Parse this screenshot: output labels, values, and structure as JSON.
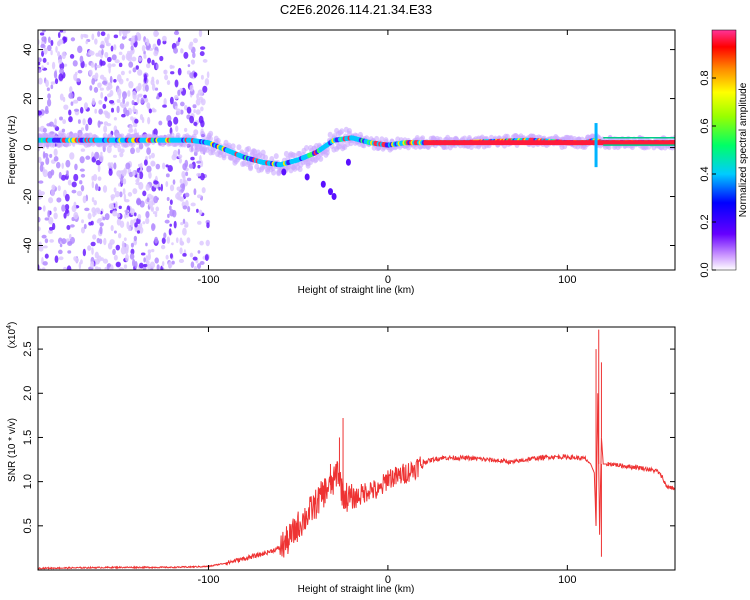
{
  "title": "C2E6.2026.114.21.34.E33",
  "chart_data": [
    {
      "type": "heatmap",
      "name": "spectrogram",
      "xlabel": "Height of straight line (km)",
      "ylabel": "Frequency (Hz)",
      "xlim": [
        -195,
        160
      ],
      "ylim": [
        -50,
        48
      ],
      "x_ticks": [
        -100,
        0,
        100
      ],
      "y_ticks": [
        -40,
        -20,
        0,
        20,
        40
      ],
      "colorbar": {
        "label": "Normalized spectral amplitude",
        "range": [
          0,
          1
        ],
        "ticks": [
          0.0,
          0.2,
          0.4,
          0.6,
          0.8
        ],
        "colors": [
          "#ffffff",
          "#cc99ff",
          "#6600ff",
          "#0000ff",
          "#00ccff",
          "#00ff66",
          "#99ff00",
          "#ffff00",
          "#ff8800",
          "#ff0000",
          "#ff3399"
        ]
      },
      "features": {
        "band_center_hz": [
          [
            -195,
            3
          ],
          [
            -150,
            3
          ],
          [
            -110,
            3
          ],
          [
            -100,
            2
          ],
          [
            -90,
            -1
          ],
          [
            -80,
            -4
          ],
          [
            -70,
            -6
          ],
          [
            -60,
            -7
          ],
          [
            -50,
            -5
          ],
          [
            -40,
            -2
          ],
          [
            -30,
            3
          ],
          [
            -20,
            4
          ],
          [
            -10,
            2
          ],
          [
            0,
            1
          ],
          [
            10,
            2
          ],
          [
            40,
            2
          ],
          [
            80,
            3
          ],
          [
            100,
            2
          ],
          [
            110,
            2
          ],
          [
            115,
            3
          ],
          [
            120,
            2
          ],
          [
            160,
            2
          ]
        ],
        "noise_region_km": [
          -195,
          -100
        ],
        "spike_km": 116
      }
    },
    {
      "type": "line",
      "name": "snr",
      "xlabel": "Height of straight line (km)",
      "ylabel": "SNR (10 * v/v)",
      "y_exponent_label": "(x10",
      "y_exponent_power": "4",
      "y_exponent_close": ")",
      "xlim": [
        -195,
        160
      ],
      "ylim": [
        0,
        2.75
      ],
      "x_ticks": [
        -100,
        0,
        100
      ],
      "y_ticks": [
        0.5,
        1.0,
        1.5,
        2.0,
        2.5
      ],
      "series": [
        {
          "name": "SNR",
          "color": "#ee3333",
          "x": [
            -195,
            -150,
            -120,
            -100,
            -90,
            -80,
            -70,
            -60,
            -55,
            -50,
            -45,
            -40,
            -35,
            -30,
            -28,
            -25,
            -20,
            -15,
            -10,
            -5,
            0,
            5,
            10,
            15,
            20,
            25,
            30,
            40,
            50,
            60,
            70,
            80,
            90,
            100,
            110,
            113,
            115,
            116,
            117,
            118,
            119,
            120,
            125,
            130,
            140,
            150,
            153,
            155,
            160
          ],
          "values": [
            0.02,
            0.03,
            0.03,
            0.04,
            0.08,
            0.13,
            0.18,
            0.25,
            0.35,
            0.5,
            0.62,
            0.75,
            0.9,
            1.0,
            1.15,
            0.85,
            0.8,
            0.85,
            0.92,
            0.88,
            1.05,
            1.05,
            1.1,
            1.15,
            1.22,
            1.25,
            1.27,
            1.27,
            1.26,
            1.24,
            1.22,
            1.26,
            1.28,
            1.28,
            1.26,
            1.2,
            1.1,
            0.5,
            2.0,
            0.4,
            1.5,
            1.2,
            1.2,
            1.18,
            1.16,
            1.12,
            1.05,
            0.95,
            0.92
          ]
        }
      ]
    }
  ]
}
